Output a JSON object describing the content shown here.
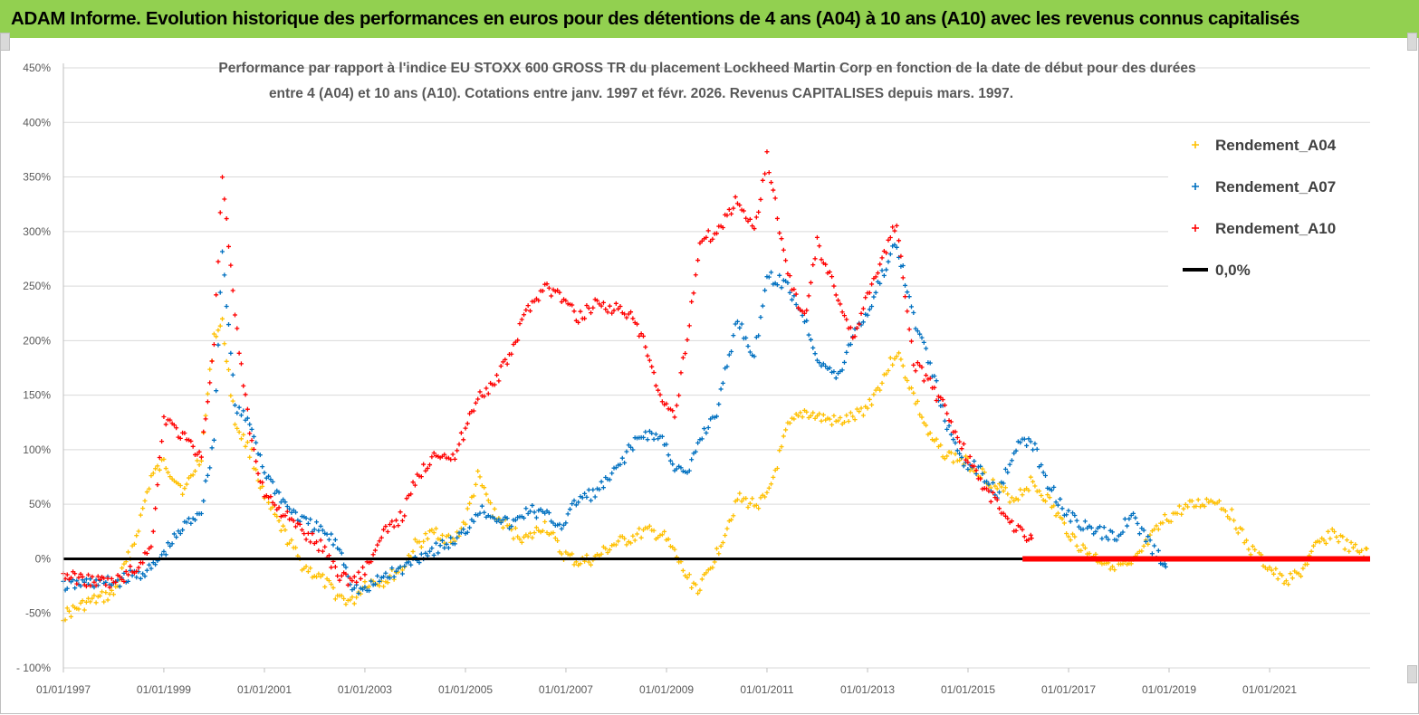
{
  "header": {
    "title": "ADAM Informe. Evolution historique des performances en euros pour des détentions de 4 ans (A04) à 10 ans (A10) avec les revenus connus capitalisés"
  },
  "colors": {
    "banner": "#92d050",
    "A04": "#ffc000",
    "A07": "#0070c0",
    "A10": "#ff0000",
    "zero_line": "#000000"
  },
  "chart_data": {
    "type": "scatter",
    "title_lines": [
      "Performance par rapport à l'indice EU STOXX 600 GROSS TR  du placement Lockheed Martin Corp en fonction de la date de début pour des durées",
      "entre 4 (A04) et 10 ans (A10).  Cotations entre janv. 1997 et févr. 2026. Revenus CAPITALISES depuis mars. 1997."
    ],
    "xlabel": "",
    "ylabel": "",
    "ylim": [
      -100,
      450
    ],
    "xlim": [
      "1997-01-01",
      "2023-01-01"
    ],
    "y_ticks": [
      "450%",
      "400%",
      "350%",
      "300%",
      "250%",
      "200%",
      "150%",
      "100%",
      "50%",
      "0%",
      "-50%",
      "- 100%"
    ],
    "y_tick_values": [
      450,
      400,
      350,
      300,
      250,
      200,
      150,
      100,
      50,
      0,
      -50,
      -100
    ],
    "x_ticks": [
      "01/01/1997",
      "01/01/1999",
      "01/01/2001",
      "01/01/2003",
      "01/01/2005",
      "01/01/2007",
      "01/01/2009",
      "01/01/2011",
      "01/01/2013",
      "01/01/2015",
      "01/01/2017",
      "01/01/2019",
      "01/01/2021"
    ],
    "x_tick_dates": [
      "1997-01-01",
      "1999-01-01",
      "2001-01-01",
      "2003-01-01",
      "2005-01-01",
      "2007-01-01",
      "2009-01-01",
      "2011-01-01",
      "2013-01-01",
      "2015-01-01",
      "2017-01-01",
      "2019-01-01",
      "2021-01-01"
    ],
    "grid": "horizontal",
    "legend_position": "top-right",
    "series": [
      {
        "name": "Rendement_A04",
        "marker": "+",
        "x": [
          "1997-01",
          "1997-07",
          "1998-01",
          "1998-06",
          "1998-10",
          "1999-01",
          "1999-06",
          "1999-10",
          "2000-01",
          "2000-03",
          "2000-06",
          "2000-10",
          "2001-01",
          "2001-06",
          "2001-10",
          "2002-03",
          "2002-07",
          "2002-10",
          "2003-01",
          "2003-06",
          "2003-10",
          "2004-01",
          "2004-06",
          "2004-10",
          "2005-01",
          "2005-04",
          "2005-08",
          "2005-12",
          "2006-04",
          "2006-08",
          "2006-12",
          "2007-04",
          "2007-08",
          "2007-12",
          "2008-04",
          "2008-08",
          "2008-12",
          "2009-03",
          "2009-06",
          "2009-09",
          "2010-01",
          "2010-06",
          "2010-10",
          "2011-01",
          "2011-06",
          "2011-10",
          "2012-01",
          "2012-06",
          "2012-10",
          "2013-01",
          "2013-04",
          "2013-08",
          "2013-12",
          "2014-04",
          "2014-08",
          "2014-12",
          "2015-04",
          "2015-08",
          "2015-12",
          "2016-04",
          "2016-08",
          "2016-12",
          "2017-04",
          "2017-08",
          "2017-12",
          "2018-04",
          "2018-08",
          "2018-12",
          "2019-04",
          "2019-08",
          "2019-12",
          "2020-04",
          "2020-08",
          "2020-12",
          "2021-04",
          "2021-08",
          "2021-12",
          "2022-04",
          "2022-08",
          "2022-12"
        ],
        "y": [
          -52,
          -40,
          -32,
          15,
          75,
          88,
          62,
          95,
          205,
          215,
          125,
          95,
          55,
          22,
          -5,
          -20,
          -35,
          -40,
          -22,
          -20,
          -8,
          12,
          25,
          15,
          35,
          75,
          40,
          25,
          18,
          32,
          5,
          -3,
          0,
          12,
          18,
          25,
          22,
          5,
          -18,
          -28,
          5,
          55,
          50,
          55,
          120,
          135,
          130,
          125,
          130,
          140,
          160,
          190,
          150,
          110,
          95,
          90,
          80,
          65,
          55,
          70,
          55,
          30,
          10,
          0,
          -5,
          -8,
          15,
          35,
          45,
          50,
          55,
          40,
          10,
          -5,
          -20,
          -15,
          10,
          25,
          10,
          5
        ]
      },
      {
        "name": "Rendement_A07",
        "marker": "+",
        "x": [
          "1997-01",
          "1997-07",
          "1998-01",
          "1998-06",
          "1998-10",
          "1999-01",
          "1999-06",
          "1999-10",
          "2000-01",
          "2000-03",
          "2000-06",
          "2000-10",
          "2001-01",
          "2001-06",
          "2001-10",
          "2002-03",
          "2002-07",
          "2002-10",
          "2003-01",
          "2003-06",
          "2003-10",
          "2004-01",
          "2004-06",
          "2004-10",
          "2005-01",
          "2005-04",
          "2005-08",
          "2005-12",
          "2006-04",
          "2006-08",
          "2006-12",
          "2007-04",
          "2007-08",
          "2007-12",
          "2008-04",
          "2008-08",
          "2008-12",
          "2009-03",
          "2009-06",
          "2009-09",
          "2010-01",
          "2010-06",
          "2010-10",
          "2011-01",
          "2011-06",
          "2011-10",
          "2012-01",
          "2012-06",
          "2012-10",
          "2013-01",
          "2013-04",
          "2013-08",
          "2013-12",
          "2014-04",
          "2014-08",
          "2014-12",
          "2015-04",
          "2015-08",
          "2015-12",
          "2016-04",
          "2016-08",
          "2016-12",
          "2017-04",
          "2017-08",
          "2017-12",
          "2018-04",
          "2018-08",
          "2018-12"
        ],
        "y": [
          -25,
          -22,
          -22,
          -15,
          -10,
          5,
          30,
          45,
          110,
          285,
          140,
          120,
          80,
          50,
          35,
          25,
          10,
          -25,
          -30,
          -15,
          -10,
          0,
          10,
          15,
          25,
          45,
          40,
          30,
          45,
          40,
          30,
          55,
          60,
          75,
          100,
          115,
          110,
          85,
          75,
          110,
          135,
          220,
          185,
          260,
          250,
          220,
          185,
          165,
          210,
          225,
          255,
          290,
          220,
          180,
          120,
          90,
          80,
          60,
          100,
          110,
          70,
          45,
          30,
          25,
          20,
          40,
          15,
          -5
        ]
      },
      {
        "name": "Rendement_A10",
        "marker": "+",
        "x": [
          "1997-01",
          "1997-07",
          "1998-01",
          "1998-06",
          "1998-10",
          "1999-01",
          "1999-06",
          "1999-10",
          "2000-01",
          "2000-03",
          "2000-06",
          "2000-10",
          "2001-01",
          "2001-06",
          "2001-10",
          "2002-03",
          "2002-07",
          "2002-10",
          "2003-01",
          "2003-06",
          "2003-10",
          "2004-01",
          "2004-06",
          "2004-10",
          "2005-01",
          "2005-04",
          "2005-08",
          "2005-12",
          "2006-04",
          "2006-08",
          "2006-12",
          "2007-04",
          "2007-08",
          "2007-12",
          "2008-04",
          "2008-08",
          "2008-12",
          "2009-03",
          "2009-06",
          "2009-09",
          "2010-01",
          "2010-06",
          "2010-10",
          "2011-01",
          "2011-06",
          "2011-10",
          "2012-01",
          "2012-06",
          "2012-10",
          "2013-01",
          "2013-04",
          "2013-08",
          "2013-12",
          "2014-04",
          "2014-08",
          "2014-12",
          "2015-04",
          "2015-08",
          "2015-12",
          "2016-04"
        ],
        "y": [
          -15,
          -20,
          -22,
          -10,
          10,
          130,
          110,
          95,
          200,
          350,
          220,
          105,
          60,
          40,
          25,
          10,
          -15,
          -20,
          -10,
          25,
          40,
          70,
          100,
          90,
          120,
          150,
          160,
          190,
          230,
          250,
          240,
          220,
          235,
          230,
          225,
          195,
          140,
          130,
          205,
          290,
          300,
          330,
          300,
          370,
          260,
          220,
          290,
          240,
          200,
          245,
          270,
          310,
          180,
          160,
          135,
          100,
          70,
          50,
          30,
          20
        ]
      },
      {
        "name": "0,0%",
        "type": "line",
        "x": [
          "1997-01-01",
          "2022-12-31"
        ],
        "y": [
          0,
          0
        ]
      }
    ]
  }
}
